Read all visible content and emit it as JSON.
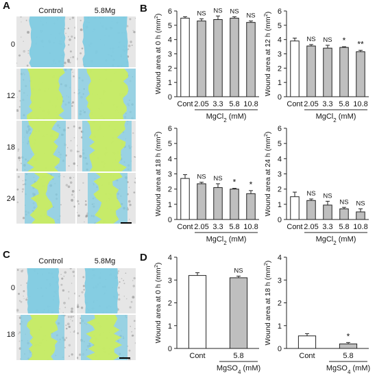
{
  "panels": {
    "A": {
      "letter": "A",
      "columns": [
        "Control",
        "5.8Mg"
      ],
      "rows": [
        "0",
        "12",
        "18",
        "24"
      ]
    },
    "B": {
      "letter": "B"
    },
    "C": {
      "letter": "C",
      "columns": [
        "Control",
        "5.8Mg"
      ],
      "rows": [
        "0",
        "18"
      ]
    },
    "D": {
      "letter": "D"
    }
  },
  "colors": {
    "bar_control": "#ffffff",
    "bar_treated": "#bfbfbf",
    "bar_stroke": "#222222",
    "wound_blue": "#7fcbe2",
    "wound_green": "#c9ec62",
    "cell_layer": "#9a9a9a"
  },
  "chart_data": [
    {
      "type": "bar",
      "panel": "B",
      "ylabel_prefix": "Wound area at 0 h (mm",
      "ylabel_sup": "2",
      "ylabel_suffix": ")",
      "categories": [
        "Cont",
        "2.05",
        "3.3",
        "5.8",
        "10.8"
      ],
      "values": [
        5.5,
        5.3,
        5.4,
        5.5,
        5.2
      ],
      "errors": [
        0.1,
        0.15,
        0.25,
        0.1,
        0.1
      ],
      "significance": [
        "",
        "NS",
        "NS",
        "NS",
        "NS"
      ],
      "ylim": [
        0,
        6
      ],
      "yticks": [
        0,
        1,
        2,
        3,
        4,
        5,
        6
      ],
      "group_label_prefix": "MgCl",
      "group_label_sub": "2",
      "group_label_suffix": " (mM)"
    },
    {
      "type": "bar",
      "panel": "B",
      "ylabel_prefix": "Wound area at 12 h (mm",
      "ylabel_sup": "2",
      "ylabel_suffix": ")",
      "categories": [
        "Cont",
        "2.05",
        "3.3",
        "5.8",
        "10.8"
      ],
      "values": [
        3.9,
        3.55,
        3.4,
        3.45,
        3.15
      ],
      "errors": [
        0.2,
        0.1,
        0.2,
        0.05,
        0.1
      ],
      "significance": [
        "",
        "NS",
        "NS",
        "*",
        "**"
      ],
      "ylim": [
        0,
        6
      ],
      "yticks": [
        0,
        1,
        2,
        3,
        4,
        5,
        6
      ],
      "group_label_prefix": "MgCl",
      "group_label_sub": "2",
      "group_label_suffix": " (mM)"
    },
    {
      "type": "bar",
      "panel": "B",
      "ylabel_prefix": "Wound area at 18 h (mm",
      "ylabel_sup": "2",
      "ylabel_suffix": ")",
      "categories": [
        "Cont",
        "2.05",
        "3.3",
        "5.8",
        "10.8"
      ],
      "values": [
        2.7,
        2.35,
        2.1,
        2.0,
        1.7
      ],
      "errors": [
        0.25,
        0.1,
        0.25,
        0.05,
        0.2
      ],
      "significance": [
        "",
        "NS",
        "NS",
        "*",
        "*"
      ],
      "ylim": [
        0,
        6
      ],
      "yticks": [
        0,
        1,
        2,
        3,
        4,
        5,
        6
      ],
      "group_label_prefix": "MgCl",
      "group_label_sub": "2",
      "group_label_suffix": " (mM)"
    },
    {
      "type": "bar",
      "panel": "B",
      "ylabel_prefix": "Wound area at 24 h (mm",
      "ylabel_sup": "2",
      "ylabel_suffix": ")",
      "categories": [
        "Cont",
        "2.05",
        "3.3",
        "5.8",
        "10.8"
      ],
      "values": [
        1.5,
        1.25,
        0.95,
        0.7,
        0.5
      ],
      "errors": [
        0.3,
        0.1,
        0.25,
        0.1,
        0.2
      ],
      "significance": [
        "",
        "NS",
        "NS",
        "NS",
        "NS"
      ],
      "ylim": [
        0,
        6
      ],
      "yticks": [
        0,
        1,
        2,
        3,
        4,
        5,
        6
      ],
      "group_label_prefix": "MgCl",
      "group_label_sub": "2",
      "group_label_suffix": " (mM)"
    },
    {
      "type": "bar",
      "panel": "D",
      "ylabel_prefix": "Wound area at 0 h (mm",
      "ylabel_sup": "2",
      "ylabel_suffix": ")",
      "categories": [
        "Cont",
        "5.8"
      ],
      "values": [
        3.2,
        3.1
      ],
      "errors": [
        0.12,
        0.07
      ],
      "significance": [
        "",
        "NS"
      ],
      "ylim": [
        0,
        4
      ],
      "yticks": [
        0,
        1,
        2,
        3,
        4
      ],
      "group_label_prefix": "MgSO",
      "group_label_sub": "4",
      "group_label_suffix": " (mM)"
    },
    {
      "type": "bar",
      "panel": "D",
      "ylabel_prefix": "Wound area at 18 h (mm",
      "ylabel_sup": "2",
      "ylabel_suffix": ")",
      "categories": [
        "Cont",
        "5.8"
      ],
      "values": [
        0.55,
        0.2
      ],
      "errors": [
        0.1,
        0.06
      ],
      "significance": [
        "",
        "*"
      ],
      "ylim": [
        0,
        4
      ],
      "yticks": [
        0,
        1,
        2,
        3,
        4
      ],
      "group_label_prefix": "MgSO",
      "group_label_sub": "4",
      "group_label_suffix": " (mM)"
    }
  ]
}
